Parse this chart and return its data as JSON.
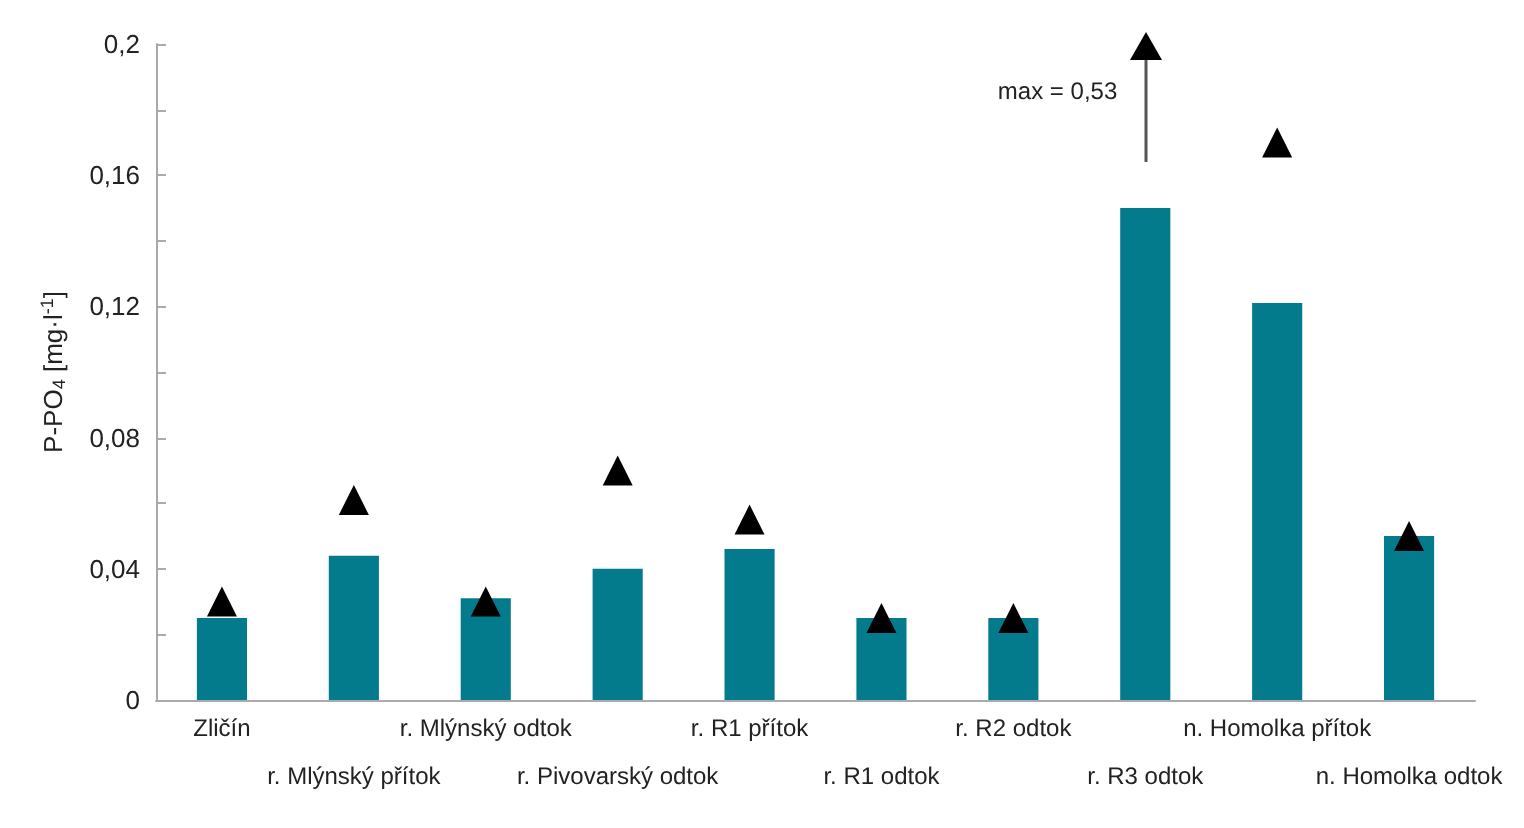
{
  "chart_data": {
    "type": "bar",
    "ylabel": "P-PO$_{4}$ [mg·l$^{-1}$]",
    "categories": [
      "Zličín",
      "r. Mlýnský přítok",
      "r. Mlýnský odtok",
      "r. Pivovarský odtok",
      "r. R1 přítok",
      "r. R1 odtok",
      "r. R2 odtok",
      "r. R3 odtok",
      "n. Homolka přítok",
      "n. Homolka odtok"
    ],
    "series": [
      {
        "color": "#047b8c",
        "values": [
          0.025,
          0.044,
          0.031,
          0.04,
          0.046,
          0.025,
          0.025,
          0.15,
          0.121,
          0.05
        ]
      },
      {
        "type": "scatter",
        "color": "#000000",
        "values": [
          0.03,
          0.061,
          0.03,
          0.07,
          0.055,
          0.025,
          0.025,
          null,
          0.17,
          0.05
        ]
      }
    ],
    "marker": "triangle",
    "ylim": [
      0,
      0.2
    ],
    "yticks": [
      {
        "value": 0,
        "label": "0"
      },
      {
        "value": 0.02,
        "label": null
      },
      {
        "value": 0.04,
        "label": "0,04"
      },
      {
        "value": 0.06,
        "label": null
      },
      {
        "value": 0.08,
        "label": "0,08"
      },
      {
        "value": 0.1,
        "label": null
      },
      {
        "value": 0.12,
        "label": "0,12"
      },
      {
        "value": 0.14,
        "label": null
      },
      {
        "value": 0.16,
        "label": "0,16"
      },
      {
        "value": 0.18,
        "label": null
      },
      {
        "value": 0.2,
        "label": "0,2"
      }
    ],
    "grid": false,
    "annotations": [
      "max = 0,53"
    ]
  }
}
